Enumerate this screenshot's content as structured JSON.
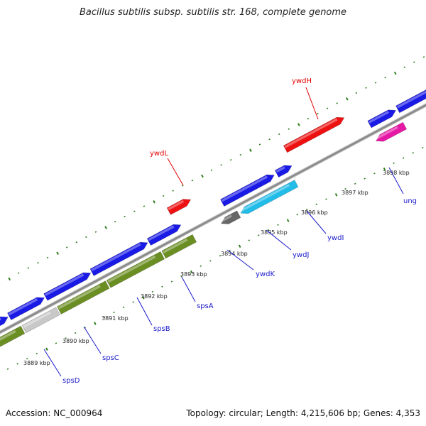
{
  "title": "Bacillus subtilis subsp. subtilis str. 168, complete genome",
  "footer": {
    "accession_label": "Accession:",
    "accession": "NC_000964",
    "summary": "Topology: circular; Length: 4,215,606 bp; Genes: 4,353"
  },
  "colors": {
    "backbone": "#8c8c8c",
    "tick": "#2e7d1e",
    "label_line_blue": "#1a1acc",
    "label_line_red": "#e00000",
    "cds_blue": "#1a1ae6",
    "gene_red": "#ee1111",
    "olive": "#6b8e23",
    "cyan": "#22bce8",
    "magenta": "#e619a6",
    "gray_light": "#c8c8c8",
    "gray_dark": "#666666"
  },
  "ticks": [
    "3889 kbp",
    "3890 kbp",
    "3891 kbp",
    "3892 kbp",
    "3893 kbp",
    "3894 kbp",
    "3895 kbp",
    "3896 kbp",
    "3897 kbp",
    "3898 kbp"
  ],
  "gene_labels": [
    {
      "name": "spsD",
      "color": "blue"
    },
    {
      "name": "spsC",
      "color": "blue"
    },
    {
      "name": "spsB",
      "color": "blue"
    },
    {
      "name": "spsA",
      "color": "blue"
    },
    {
      "name": "ywdK",
      "color": "blue"
    },
    {
      "name": "ywdJ",
      "color": "blue"
    },
    {
      "name": "ywdI",
      "color": "blue"
    },
    {
      "name": "ung",
      "color": "blue"
    },
    {
      "name": "ywdL",
      "color": "red"
    },
    {
      "name": "ywdH",
      "color": "red"
    }
  ]
}
